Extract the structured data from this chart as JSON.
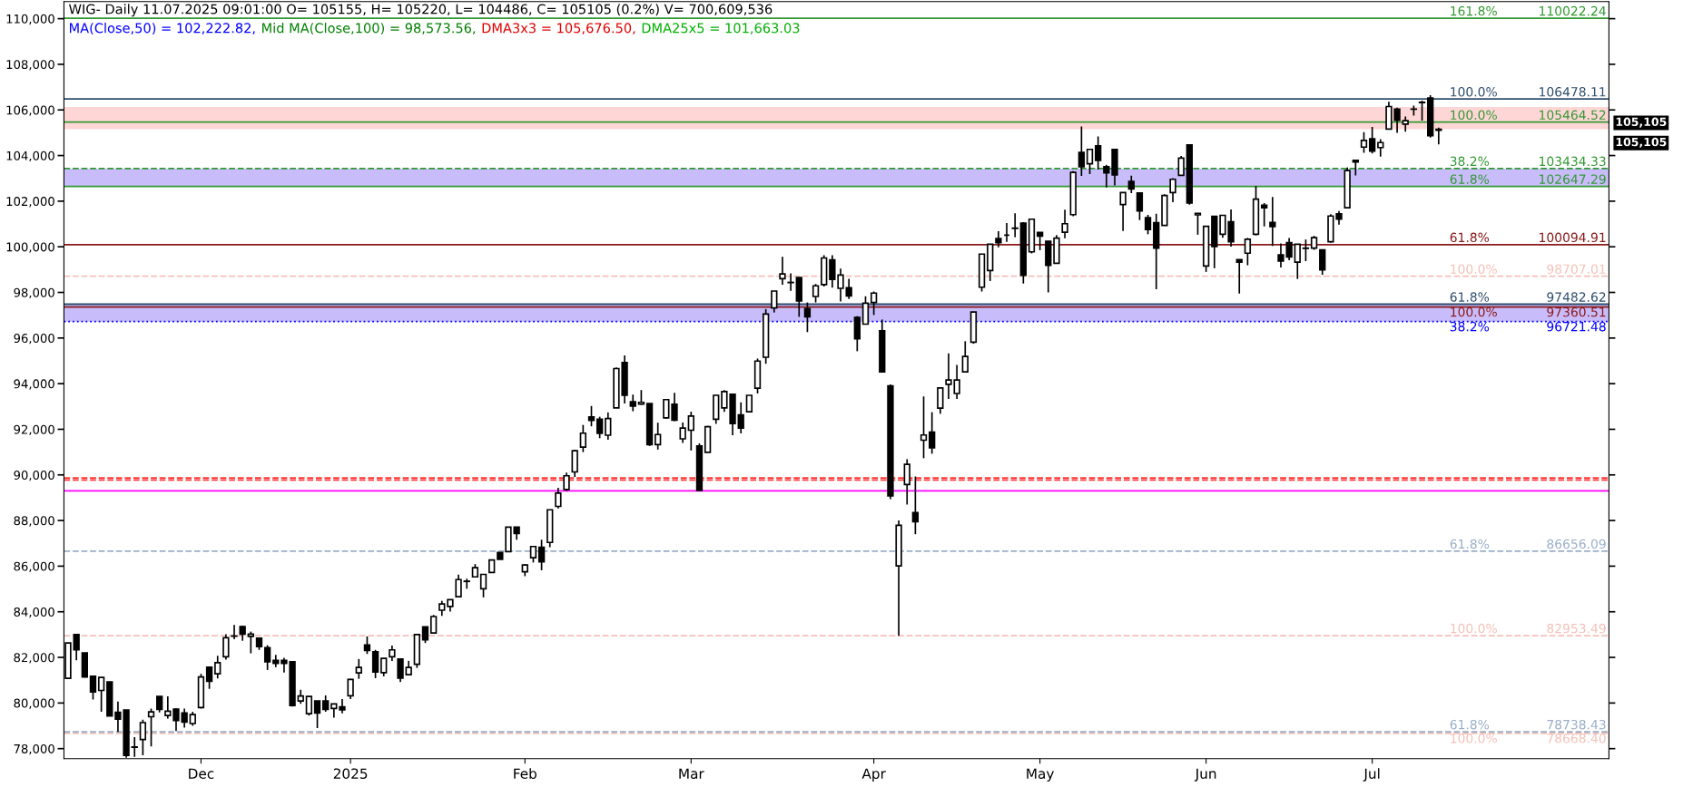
{
  "chart_data": {
    "type": "candlestick",
    "title": "WIG- Daily 11.07.2025 09:01:00 O= 105155, H= 105220, L= 104486, C= 105105 (0.2%) V= 700,609,536",
    "color": "#000000",
    "categories": [
      null,
      null,
      null,
      null,
      null,
      null,
      null,
      null,
      null,
      null,
      null,
      null,
      null,
      null,
      null,
      null,
      "Dec",
      null,
      null,
      null,
      null,
      null,
      null,
      null,
      null,
      null,
      null,
      null,
      null,
      null,
      null,
      null,
      null,
      null,
      "2025",
      null,
      null,
      null,
      null,
      null,
      null,
      null,
      null,
      null,
      null,
      null,
      null,
      null,
      null,
      null,
      null,
      null,
      null,
      null,
      null,
      "Feb",
      null,
      null,
      null,
      null,
      null,
      null,
      null,
      null,
      null,
      null,
      null,
      null,
      null,
      null,
      null,
      null,
      null,
      null,
      null,
      "Mar",
      null,
      null,
      null,
      null,
      null,
      null,
      null,
      null,
      null,
      null,
      null,
      null,
      null,
      null,
      null,
      null,
      null,
      null,
      null,
      null,
      null,
      "Apr",
      null,
      null,
      null,
      null,
      null,
      null,
      null,
      null,
      null,
      null,
      null,
      null,
      null,
      null,
      null,
      null,
      null,
      null,
      null,
      "May",
      null,
      null,
      null,
      null,
      null,
      null,
      null,
      null,
      null,
      null,
      null,
      null,
      null,
      null,
      null,
      null,
      null,
      null,
      null,
      "Jun",
      null,
      null,
      null,
      null,
      null,
      null,
      null,
      null,
      null,
      null,
      null,
      null,
      null,
      null,
      null,
      null,
      null,
      null,
      null,
      "Jul",
      null,
      null,
      null,
      null,
      null,
      null,
      null,
      null
    ],
    "ohlc": [
      [
        81080,
        82630,
        81080,
        82630
      ],
      [
        83000,
        83000,
        81870,
        82330
      ],
      [
        82200,
        82200,
        81120,
        81140
      ],
      [
        81170,
        81170,
        80150,
        80480
      ],
      [
        80550,
        81120,
        79620,
        81120
      ],
      [
        80930,
        80930,
        79430,
        79430
      ],
      [
        79590,
        80060,
        78730,
        79290
      ],
      [
        79690,
        79690,
        77600,
        77700
      ],
      [
        78060,
        78500,
        77640,
        78070
      ],
      [
        78400,
        79270,
        77710,
        79140
      ],
      [
        79400,
        79760,
        78100,
        79610
      ],
      [
        80290,
        80290,
        79590,
        79720
      ],
      [
        79450,
        80290,
        79320,
        79640
      ],
      [
        79730,
        79780,
        78770,
        79230
      ],
      [
        79560,
        79760,
        78920,
        79160
      ],
      [
        79100,
        79620,
        79000,
        79490
      ],
      [
        79800,
        81280,
        79760,
        81140
      ],
      [
        81570,
        81570,
        80620,
        80950
      ],
      [
        81280,
        82070,
        81080,
        81770
      ],
      [
        82030,
        83020,
        81900,
        82860
      ],
      [
        82930,
        83420,
        82800,
        82940
      ],
      [
        83350,
        83390,
        82730,
        83020
      ],
      [
        82920,
        83130,
        82180,
        83020
      ],
      [
        82840,
        82840,
        82330,
        82470
      ],
      [
        82430,
        82530,
        81450,
        81810
      ],
      [
        81870,
        82110,
        81570,
        81740
      ],
      [
        81870,
        81980,
        81340,
        81740
      ],
      [
        81810,
        81810,
        79850,
        79890
      ],
      [
        80090,
        80580,
        79960,
        80310
      ],
      [
        79530,
        80290,
        79450,
        80290
      ],
      [
        80090,
        80090,
        78900,
        79560
      ],
      [
        80090,
        80330,
        79620,
        79720
      ],
      [
        79760,
        79960,
        79360,
        79960
      ],
      [
        79830,
        80170,
        79550,
        79700
      ],
      [
        80320,
        81060,
        80170,
        81030
      ],
      [
        81320,
        81930,
        81060,
        81560
      ],
      [
        82550,
        82920,
        82150,
        82300
      ],
      [
        82250,
        82330,
        81090,
        81360
      ],
      [
        81330,
        81960,
        81170,
        81960
      ],
      [
        82030,
        82520,
        81840,
        82330
      ],
      [
        81930,
        81930,
        80920,
        81090
      ],
      [
        81240,
        81850,
        81210,
        81560
      ],
      [
        81700,
        83000,
        81540,
        83000
      ],
      [
        83340,
        83340,
        82630,
        82770
      ],
      [
        83070,
        83860,
        83040,
        83790
      ],
      [
        84070,
        84480,
        83820,
        84340
      ],
      [
        84230,
        84530,
        84010,
        84530
      ],
      [
        84660,
        85630,
        84660,
        85410
      ],
      [
        85330,
        85450,
        85010,
        85340
      ],
      [
        85530,
        86090,
        85530,
        85930
      ],
      [
        85010,
        85640,
        84630,
        85640
      ],
      [
        85720,
        86270,
        85720,
        86270
      ],
      [
        86600,
        86600,
        86300,
        86300
      ],
      [
        86640,
        87710,
        86640,
        87710
      ],
      [
        87710,
        87710,
        87160,
        87430
      ],
      [
        85750,
        86090,
        85560,
        86050
      ],
      [
        86370,
        86860,
        86160,
        86860
      ],
      [
        86830,
        87160,
        85820,
        86190
      ],
      [
        87040,
        88470,
        86830,
        88470
      ],
      [
        88620,
        89430,
        88530,
        89200
      ],
      [
        89360,
        90100,
        89290,
        89960
      ],
      [
        90130,
        91100,
        89910,
        91060
      ],
      [
        91220,
        92190,
        91000,
        91830
      ],
      [
        92540,
        93020,
        92130,
        92390
      ],
      [
        92440,
        92550,
        91610,
        91820
      ],
      [
        91740,
        92740,
        91540,
        92470
      ],
      [
        92940,
        94710,
        92940,
        94660
      ],
      [
        94930,
        95240,
        93130,
        93490
      ],
      [
        93210,
        93520,
        92790,
        93020
      ],
      [
        93100,
        93720,
        93070,
        93180
      ],
      [
        93130,
        93130,
        91270,
        91330
      ],
      [
        91330,
        92290,
        91110,
        91770
      ],
      [
        92500,
        93300,
        92470,
        93300
      ],
      [
        93100,
        93600,
        92360,
        92400
      ],
      [
        91580,
        92300,
        91400,
        92050
      ],
      [
        91960,
        92770,
        91070,
        92580
      ],
      [
        91270,
        91380,
        89300,
        89320
      ],
      [
        90990,
        92150,
        90990,
        92110
      ],
      [
        92440,
        93520,
        92240,
        93490
      ],
      [
        92940,
        93720,
        92760,
        93650
      ],
      [
        93540,
        93540,
        91740,
        92250
      ],
      [
        92630,
        93180,
        91820,
        92050
      ],
      [
        92770,
        93490,
        92770,
        93490
      ],
      [
        93800,
        95100,
        93570,
        94990
      ],
      [
        95160,
        97270,
        94870,
        97050
      ],
      [
        97320,
        98060,
        97120,
        98060
      ],
      [
        98600,
        99560,
        98340,
        98810
      ],
      [
        98430,
        98840,
        98070,
        98440
      ],
      [
        98650,
        98650,
        96930,
        97630
      ],
      [
        97290,
        97560,
        96260,
        96930
      ],
      [
        97820,
        98370,
        97560,
        98290
      ],
      [
        98340,
        99630,
        98260,
        99510
      ],
      [
        99430,
        99630,
        98210,
        98570
      ],
      [
        98180,
        99040,
        97600,
        98760
      ],
      [
        98210,
        98600,
        97710,
        97840
      ],
      [
        96900,
        96960,
        95420,
        95970
      ],
      [
        96610,
        97830,
        96610,
        97530
      ],
      [
        97560,
        98040,
        97010,
        97970
      ],
      [
        96320,
        96810,
        94520,
        94520
      ],
      [
        93900,
        93970,
        88940,
        89080
      ],
      [
        86010,
        88000,
        82950,
        87790
      ],
      [
        89580,
        90690,
        88700,
        90460
      ],
      [
        88350,
        89930,
        87400,
        87950
      ],
      [
        91520,
        93440,
        90730,
        91750
      ],
      [
        91880,
        92750,
        90930,
        91190
      ],
      [
        92930,
        93810,
        92680,
        93810
      ],
      [
        93970,
        95330,
        93330,
        94160
      ],
      [
        93570,
        94820,
        93330,
        94160
      ],
      [
        94520,
        95860,
        94520,
        95190
      ],
      [
        95820,
        97140,
        95750,
        97140
      ],
      [
        98230,
        99680,
        98040,
        99680
      ],
      [
        98960,
        100110,
        98500,
        100110
      ],
      [
        100360,
        100680,
        99980,
        100180
      ],
      [
        100510,
        101040,
        100220,
        100510
      ],
      [
        100810,
        101470,
        100420,
        100820
      ],
      [
        101040,
        101080,
        98390,
        98750
      ],
      [
        99780,
        101240,
        99710,
        101210
      ],
      [
        100630,
        100630,
        99850,
        100470
      ],
      [
        100240,
        100240,
        98000,
        99190
      ],
      [
        99280,
        100510,
        99280,
        100380
      ],
      [
        100640,
        101630,
        100380,
        101010
      ],
      [
        101410,
        103320,
        101340,
        103260
      ],
      [
        104140,
        105270,
        103110,
        103510
      ],
      [
        103640,
        104270,
        103190,
        104270
      ],
      [
        104430,
        104840,
        103390,
        103790
      ],
      [
        103510,
        103590,
        102600,
        103240
      ],
      [
        104270,
        104270,
        102690,
        103150
      ],
      [
        101850,
        102380,
        100690,
        102380
      ],
      [
        102870,
        103120,
        102350,
        102530
      ],
      [
        102360,
        102360,
        101170,
        101570
      ],
      [
        101280,
        101400,
        100550,
        100760
      ],
      [
        101060,
        101450,
        98140,
        99940
      ],
      [
        100940,
        102300,
        100940,
        102250
      ],
      [
        102380,
        103010,
        101960,
        102960
      ],
      [
        103130,
        103980,
        103130,
        103890
      ],
      [
        104470,
        104470,
        101850,
        101920
      ],
      [
        101400,
        101470,
        100530,
        101470
      ],
      [
        99160,
        100900,
        98900,
        100900
      ],
      [
        101340,
        101340,
        99060,
        100010
      ],
      [
        100550,
        101380,
        100400,
        101380
      ],
      [
        101100,
        101640,
        100010,
        100220
      ],
      [
        99440,
        99440,
        97950,
        99330
      ],
      [
        99720,
        100390,
        99190,
        100330
      ],
      [
        100550,
        102660,
        100500,
        102090
      ],
      [
        101820,
        101920,
        100890,
        101710
      ],
      [
        101070,
        102180,
        100040,
        100890
      ],
      [
        99650,
        100150,
        99090,
        99370
      ],
      [
        100180,
        100390,
        99410,
        99550
      ],
      [
        99330,
        100110,
        98590,
        100110
      ],
      [
        99930,
        100320,
        99370,
        99940
      ],
      [
        99940,
        100480,
        99870,
        100400
      ],
      [
        99870,
        99890,
        98770,
        98990
      ],
      [
        100220,
        101430,
        100180,
        101350
      ],
      [
        101450,
        101570,
        100970,
        101210
      ],
      [
        101710,
        103480,
        101710,
        103340
      ],
      [
        103790,
        103790,
        103130,
        103720
      ],
      [
        104370,
        105030,
        104120,
        104660
      ],
      [
        104730,
        105250,
        104090,
        104190
      ],
      [
        104350,
        104720,
        103950,
        104570
      ],
      [
        105160,
        106360,
        105160,
        106150
      ],
      [
        106040,
        106100,
        105000,
        105550
      ],
      [
        105380,
        105710,
        105050,
        105530
      ],
      [
        106030,
        106190,
        105750,
        106040
      ],
      [
        106320,
        106410,
        105530,
        106330
      ],
      [
        106520,
        106650,
        104790,
        104870
      ],
      [
        105155,
        105220,
        104486,
        105105
      ]
    ],
    "ylim": [
      77560,
      110750
    ],
    "yticks": [
      {
        "value": 78000,
        "label": "78,000"
      },
      {
        "value": 80000,
        "label": "80,000"
      },
      {
        "value": 82000,
        "label": "82,000"
      },
      {
        "value": 84000,
        "label": "84,000"
      },
      {
        "value": 86000,
        "label": "86,000"
      },
      {
        "value": 88000,
        "label": "88,000"
      },
      {
        "value": 90000,
        "label": "90,000"
      },
      {
        "value": 92000,
        "label": "92,000"
      },
      {
        "value": 94000,
        "label": "94,000"
      },
      {
        "value": 96000,
        "label": "96,000"
      },
      {
        "value": 98000,
        "label": "98,000"
      },
      {
        "value": 100000,
        "label": "100,000"
      },
      {
        "value": 102000,
        "label": "102,000"
      },
      {
        "value": 104000,
        "label": "104,000"
      },
      {
        "value": 106000,
        "label": "106,000"
      },
      {
        "value": 108000,
        "label": "108,000"
      },
      {
        "value": 110000,
        "label": "110,000"
      }
    ],
    "ref_lines": [
      {
        "axis": "y",
        "value": 110022.24,
        "label": "110022.24",
        "color": "#339933",
        "line_style": "solid"
      },
      {
        "axis": "y",
        "value": 106478.11,
        "label": "106478.11",
        "color": "#2f4f6f",
        "line_style": "solid"
      },
      {
        "axis": "y",
        "value": 105464.52,
        "label": "105464.52",
        "color": "#339933",
        "line_style": "solid"
      },
      {
        "axis": "y",
        "value": 103434.33,
        "label": "103434.33",
        "color": "#339933",
        "line_style": "dashed"
      },
      {
        "axis": "y",
        "value": 102647.29,
        "label": "102647.29",
        "color": "#339933",
        "line_style": "solid"
      },
      {
        "axis": "y",
        "value": 100094.91,
        "label": "100094.91",
        "color": "#8b1a1a",
        "line_style": "solid"
      },
      {
        "axis": "y",
        "value": 98707.01,
        "label": "98707.01",
        "color": "#f5c0b8",
        "line_style": "dashed"
      },
      {
        "axis": "y",
        "value": 97482.62,
        "label": "97482.62",
        "color": "#2f4f6f",
        "line_style": "solid"
      },
      {
        "axis": "y",
        "value": 97360.51,
        "label": "97360.51",
        "color": "#8b1a1a",
        "line_style": "solid"
      },
      {
        "axis": "y",
        "value": 96721.48,
        "label": "96721.48",
        "color": "#0000ff",
        "line_style": "dotted"
      },
      {
        "axis": "y",
        "value": 89870,
        "color": "#ff3333",
        "line_style": "dashed"
      },
      {
        "axis": "y",
        "value": 89780,
        "color": "#ff3333",
        "line_style": "dashed"
      },
      {
        "axis": "y",
        "value": 89300,
        "color": "#ff00ff",
        "line_style": "solid"
      },
      {
        "axis": "y",
        "value": 86656.09,
        "label": "86656.09",
        "color": "#9aaec8",
        "line_style": "dashed"
      },
      {
        "axis": "y",
        "value": 82953.49,
        "label": "82953.49",
        "color": "#f5c0b8",
        "line_style": "dashed"
      },
      {
        "axis": "y",
        "value": 78738.43,
        "label": "78738.43",
        "color": "#9aaec8",
        "line_style": "dashed"
      },
      {
        "axis": "y",
        "value": 78668.4,
        "label": "78668.40",
        "color": "#f5c0b8",
        "line_style": "dashed"
      }
    ],
    "bands": [
      {
        "axis": "y",
        "from": 105150,
        "to": 106130,
        "color": "#ffd6d6"
      },
      {
        "axis": "y",
        "from": 102650,
        "to": 103430,
        "color": "#c9bcfa"
      },
      {
        "axis": "y",
        "from": 96720,
        "to": 97480,
        "color": "#c9bcfa"
      }
    ],
    "annotations": [
      "MA(Close,50) = 102,222.82,",
      "Mid MA(Close,100) = 98,573.56,",
      "DMA3x3 = 105,676.50,",
      "DMA25x5 = 101,663.03",
      {
        "text": "161.8%",
        "y": 110022.24
      },
      {
        "text": "100.0%",
        "y": 106478.11
      },
      {
        "text": "100.0%",
        "y": 105464.52
      },
      {
        "text": "38.2%",
        "y": 103434.33
      },
      {
        "text": "61.8%",
        "y": 102647.29
      },
      {
        "text": "61.8%",
        "y": 100094.91
      },
      {
        "text": "100.0%",
        "y": 98707.01
      },
      {
        "text": "61.8%",
        "y": 97482.62
      },
      {
        "text": "100.0%",
        "y": 97360.51
      },
      {
        "text": "38.2%",
        "y": 96721.48
      },
      {
        "text": "61.8%",
        "y": 86656.09
      },
      {
        "text": "100.0%",
        "y": 82953.49
      },
      {
        "text": "61.8%",
        "y": 78738.43
      },
      {
        "text": "100.0%",
        "y": 78668.4
      },
      "105,105",
      "105,105"
    ]
  }
}
